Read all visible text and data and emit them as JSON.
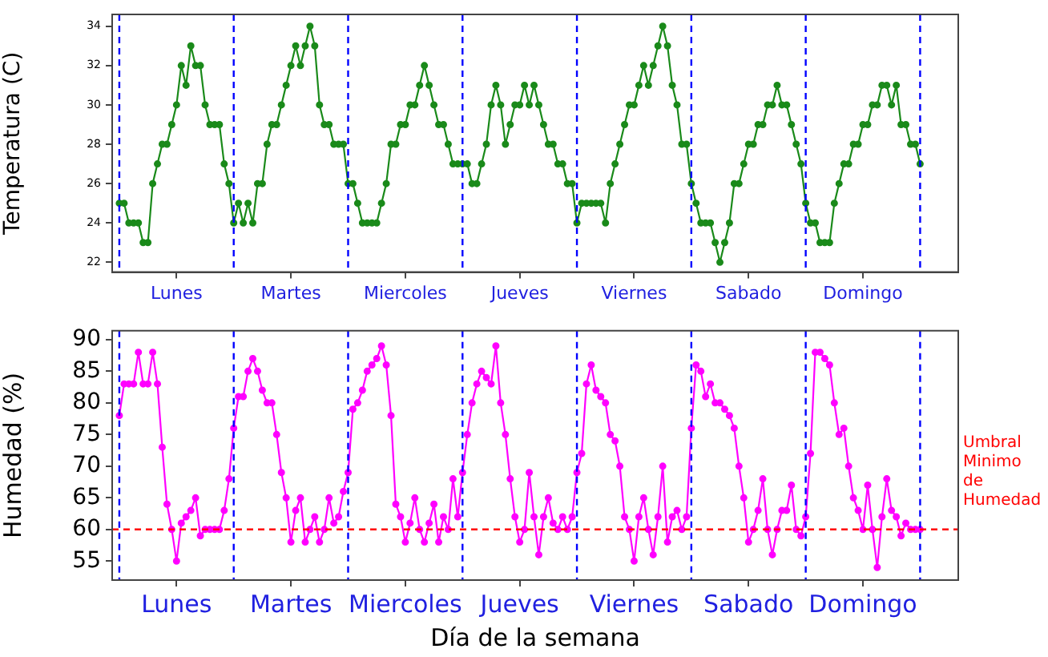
{
  "chart_data": [
    {
      "type": "line",
      "ylabel": "Temperatura (C)",
      "marker": "circle",
      "legend": false,
      "grid": false,
      "categories": [
        null,
        null,
        null,
        null,
        null,
        null,
        null,
        null,
        null,
        null,
        null,
        null,
        "Lunes",
        null,
        null,
        null,
        null,
        null,
        null,
        null,
        null,
        null,
        null,
        null,
        null,
        null,
        null,
        null,
        null,
        null,
        null,
        null,
        null,
        null,
        null,
        null,
        "Martes",
        null,
        null,
        null,
        null,
        null,
        null,
        null,
        null,
        null,
        null,
        null,
        null,
        null,
        null,
        null,
        null,
        null,
        null,
        null,
        null,
        null,
        null,
        null,
        "Miercoles",
        null,
        null,
        null,
        null,
        null,
        null,
        null,
        null,
        null,
        null,
        null,
        null,
        null,
        null,
        null,
        null,
        null,
        null,
        null,
        null,
        null,
        null,
        null,
        "Jueves",
        null,
        null,
        null,
        null,
        null,
        null,
        null,
        null,
        null,
        null,
        null,
        null,
        null,
        null,
        null,
        null,
        null,
        null,
        null,
        null,
        null,
        null,
        null,
        "Viernes",
        null,
        null,
        null,
        null,
        null,
        null,
        null,
        null,
        null,
        null,
        null,
        null,
        null,
        null,
        null,
        null,
        null,
        null,
        null,
        null,
        null,
        null,
        null,
        "Sabado",
        null,
        null,
        null,
        null,
        null,
        null,
        null,
        null,
        null,
        null,
        null,
        null,
        null,
        null,
        null,
        null,
        null,
        null,
        null,
        null,
        null,
        null,
        null,
        "Domingo",
        null,
        null,
        null,
        null,
        null,
        null,
        null,
        null,
        null,
        null,
        null,
        null
      ],
      "ylim": [
        21.5,
        34.6
      ],
      "yticks": [
        22,
        24,
        26,
        28,
        30,
        32,
        34
      ],
      "series": [
        {
          "color": "#1a8a1a",
          "values": [
            25,
            25,
            24,
            24,
            24,
            23,
            23,
            26,
            27,
            28,
            28,
            29,
            30,
            32,
            31,
            33,
            32,
            32,
            30,
            29,
            29,
            29,
            27,
            26,
            24,
            25,
            24,
            25,
            24,
            26,
            26,
            28,
            29,
            29,
            30,
            31,
            32,
            33,
            32,
            33,
            34,
            33,
            30,
            29,
            29,
            28,
            28,
            28,
            26,
            26,
            25,
            24,
            24,
            24,
            24,
            25,
            26,
            28,
            28,
            29,
            29,
            30,
            30,
            31,
            32,
            31,
            30,
            29,
            29,
            28,
            27,
            27,
            27,
            27,
            26,
            26,
            27,
            28,
            30,
            31,
            30,
            28,
            29,
            30,
            30,
            31,
            30,
            31,
            30,
            29,
            28,
            28,
            27,
            27,
            26,
            26,
            24,
            25,
            25,
            25,
            25,
            25,
            24,
            26,
            27,
            28,
            29,
            30,
            30,
            31,
            32,
            31,
            32,
            33,
            34,
            33,
            31,
            30,
            28,
            28,
            26,
            25,
            24,
            24,
            24,
            23,
            22,
            23,
            24,
            26,
            26,
            27,
            28,
            28,
            29,
            29,
            30,
            30,
            31,
            30,
            30,
            29,
            28,
            27,
            25,
            24,
            24,
            23,
            23,
            23,
            25,
            26,
            27,
            27,
            28,
            28,
            29,
            29,
            30,
            30,
            31,
            31,
            30,
            31,
            29,
            29,
            28,
            28,
            27
          ]
        }
      ]
    },
    {
      "type": "line",
      "xlabel": "Día de la semana",
      "ylabel": "Humedad (%)",
      "marker": "circle",
      "legend": false,
      "grid": false,
      "categories": [
        null,
        null,
        null,
        null,
        null,
        null,
        null,
        null,
        null,
        null,
        null,
        null,
        "Lunes",
        null,
        null,
        null,
        null,
        null,
        null,
        null,
        null,
        null,
        null,
        null,
        null,
        null,
        null,
        null,
        null,
        null,
        null,
        null,
        null,
        null,
        null,
        null,
        "Martes",
        null,
        null,
        null,
        null,
        null,
        null,
        null,
        null,
        null,
        null,
        null,
        null,
        null,
        null,
        null,
        null,
        null,
        null,
        null,
        null,
        null,
        null,
        null,
        "Miercoles",
        null,
        null,
        null,
        null,
        null,
        null,
        null,
        null,
        null,
        null,
        null,
        null,
        null,
        null,
        null,
        null,
        null,
        null,
        null,
        null,
        null,
        null,
        null,
        "Jueves",
        null,
        null,
        null,
        null,
        null,
        null,
        null,
        null,
        null,
        null,
        null,
        null,
        null,
        null,
        null,
        null,
        null,
        null,
        null,
        null,
        null,
        null,
        null,
        "Viernes",
        null,
        null,
        null,
        null,
        null,
        null,
        null,
        null,
        null,
        null,
        null,
        null,
        null,
        null,
        null,
        null,
        null,
        null,
        null,
        null,
        null,
        null,
        null,
        "Sabado",
        null,
        null,
        null,
        null,
        null,
        null,
        null,
        null,
        null,
        null,
        null,
        null,
        null,
        null,
        null,
        null,
        null,
        null,
        null,
        null,
        null,
        null,
        null,
        "Domingo",
        null,
        null,
        null,
        null,
        null,
        null,
        null,
        null,
        null,
        null,
        null,
        null
      ],
      "ylim": [
        52,
        91.4
      ],
      "yticks": [
        55,
        60,
        65,
        70,
        75,
        80,
        85,
        90
      ],
      "series": [
        {
          "color": "#ff00ff",
          "values": [
            78,
            83,
            83,
            83,
            88,
            83,
            83,
            88,
            83,
            73,
            64,
            60,
            55,
            61,
            62,
            63,
            65,
            59,
            60,
            60,
            60,
            60,
            63,
            68,
            76,
            81,
            81,
            85,
            87,
            85,
            82,
            80,
            80,
            75,
            69,
            65,
            58,
            63,
            65,
            58,
            60,
            62,
            58,
            60,
            65,
            61,
            62,
            66,
            69,
            79,
            80,
            82,
            85,
            86,
            87,
            89,
            86,
            78,
            64,
            62,
            58,
            61,
            65,
            60,
            58,
            61,
            64,
            58,
            62,
            60,
            68,
            62,
            69,
            75,
            80,
            83,
            85,
            84,
            83,
            89,
            80,
            75,
            68,
            62,
            58,
            60,
            69,
            62,
            56,
            62,
            65,
            61,
            60,
            62,
            60,
            62,
            69,
            72,
            83,
            86,
            82,
            81,
            80,
            75,
            74,
            70,
            62,
            60,
            55,
            62,
            65,
            60,
            56,
            62,
            70,
            58,
            62,
            63,
            60,
            62,
            76,
            86,
            85,
            81,
            83,
            80,
            80,
            79,
            78,
            76,
            70,
            65,
            58,
            60,
            63,
            68,
            60,
            56,
            60,
            63,
            63,
            67,
            60,
            59,
            62,
            72,
            88,
            88,
            87,
            86,
            80,
            75,
            76,
            70,
            65,
            63,
            60,
            67,
            60,
            54,
            62,
            68,
            63,
            62,
            59,
            61,
            60,
            60,
            60
          ]
        }
      ],
      "ref_lines": [
        {
          "axis": "y",
          "value": 60,
          "label": "Umbral Minimo de Humedad",
          "color": "#ff0000",
          "line_style": "dashed"
        }
      ]
    }
  ]
}
